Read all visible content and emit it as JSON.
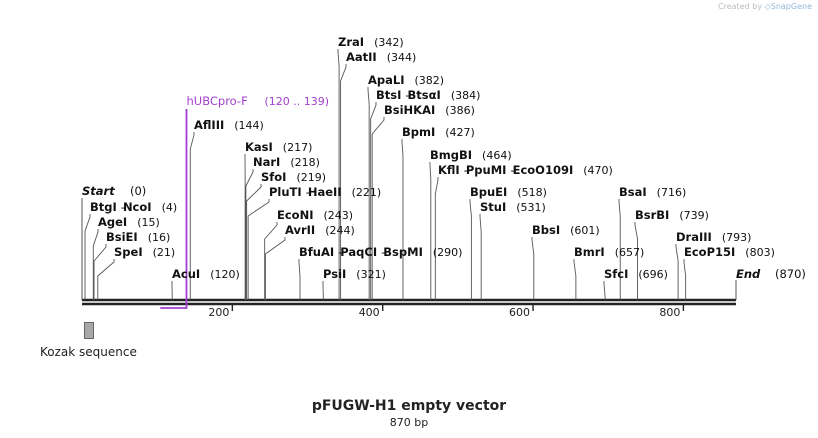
{
  "credit": {
    "prefix": "Created by",
    "brand": "SnapGene"
  },
  "title": "pFUGW-H1 empty vector",
  "subtitle": "870 bp",
  "map": {
    "length": 870,
    "ticks": [
      200,
      400,
      600,
      800
    ],
    "start_label": "Start",
    "start_pos": "(0)",
    "end_label": "End",
    "end_pos": "(870)"
  },
  "primer": {
    "name": "hUBCpro-F",
    "range": "(120 .. 139)",
    "color": "#a040d0"
  },
  "legend": {
    "label": "Kozak sequence"
  },
  "colors": {
    "site": "#111111",
    "line": "#555555"
  },
  "sites": [
    {
      "names": [
        "BtgI",
        "NcoI"
      ],
      "pos": "(4)"
    },
    {
      "names": [
        "AgeI"
      ],
      "pos": "(15)"
    },
    {
      "names": [
        "BsiEI"
      ],
      "pos": "(16)"
    },
    {
      "names": [
        "SpeI"
      ],
      "pos": "(21)"
    },
    {
      "names": [
        "AcuI"
      ],
      "pos": "(120)"
    },
    {
      "names": [
        "AflIII"
      ],
      "pos": "(144)"
    },
    {
      "names": [
        "KasI"
      ],
      "pos": "(217)"
    },
    {
      "names": [
        "NarI"
      ],
      "pos": "(218)"
    },
    {
      "names": [
        "SfoI"
      ],
      "pos": "(219)"
    },
    {
      "names": [
        "PluTI",
        "HaeII"
      ],
      "pos": "(221)"
    },
    {
      "names": [
        "EcoNI"
      ],
      "pos": "(243)"
    },
    {
      "names": [
        "AvrII"
      ],
      "pos": "(244)"
    },
    {
      "names": [
        "BfuAI",
        "PaqCI",
        "BspMI"
      ],
      "pos": "(290)"
    },
    {
      "names": [
        "PsiI"
      ],
      "pos": "(321)"
    },
    {
      "names": [
        "ZraI"
      ],
      "pos": "(342)"
    },
    {
      "names": [
        "AatII"
      ],
      "pos": "(344)"
    },
    {
      "names": [
        "ApaLI"
      ],
      "pos": "(382)"
    },
    {
      "names": [
        "BtsI",
        "BtsαI"
      ],
      "pos": "(384)"
    },
    {
      "names": [
        "BsiHKAI"
      ],
      "pos": "(386)"
    },
    {
      "names": [
        "BpmI"
      ],
      "pos": "(427)"
    },
    {
      "names": [
        "BmgBI"
      ],
      "pos": "(464)"
    },
    {
      "names": [
        "KflI",
        "PpuMI",
        "EcoO109I"
      ],
      "pos": "(470)"
    },
    {
      "names": [
        "BpuEI"
      ],
      "pos": "(518)"
    },
    {
      "names": [
        "StuI"
      ],
      "pos": "(531)"
    },
    {
      "names": [
        "BbsI"
      ],
      "pos": "(601)"
    },
    {
      "names": [
        "BmrI"
      ],
      "pos": "(657)"
    },
    {
      "names": [
        "SfcI"
      ],
      "pos": "(696)"
    },
    {
      "names": [
        "BsaI"
      ],
      "pos": "(716)"
    },
    {
      "names": [
        "BsrBI"
      ],
      "pos": "(739)"
    },
    {
      "names": [
        "DraIII"
      ],
      "pos": "(793)"
    },
    {
      "names": [
        "EcoP15I"
      ],
      "pos": "(803)"
    }
  ]
}
